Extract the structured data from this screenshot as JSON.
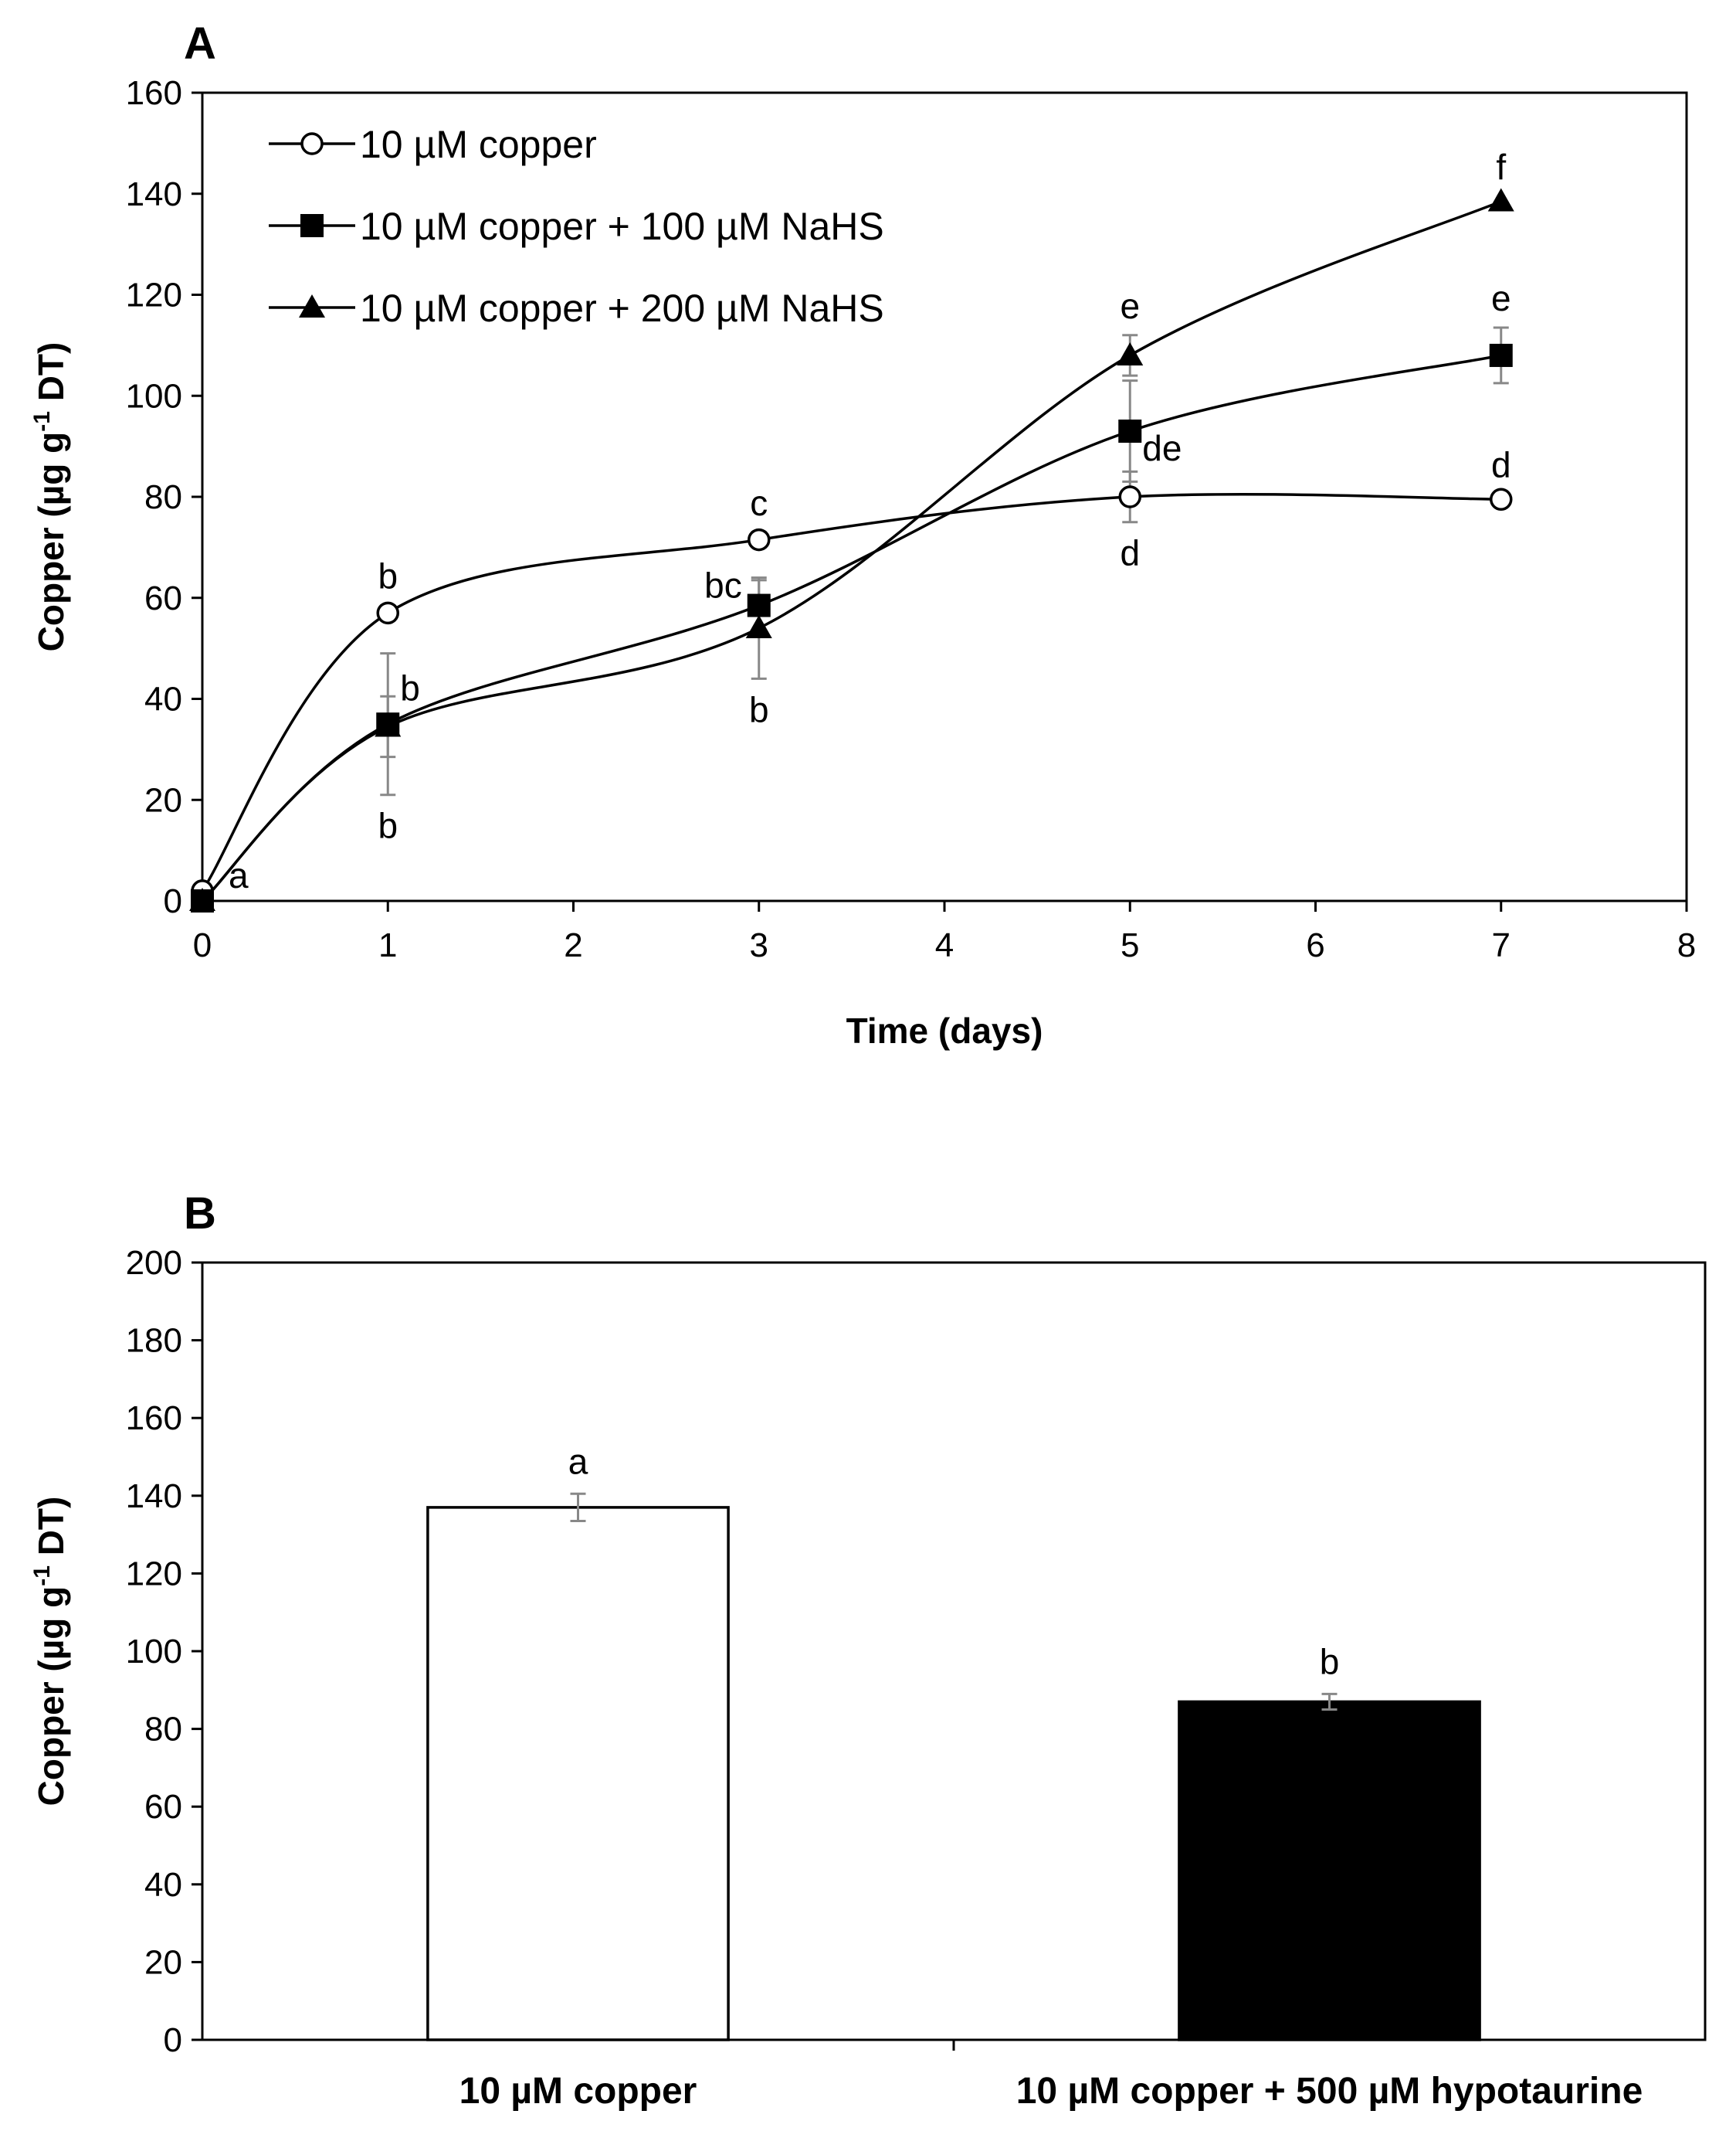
{
  "chart_data": [
    {
      "panel": "A",
      "type": "line",
      "xlabel": "Time (days)",
      "ylabel": "Copper (µg g-1 DT)",
      "xlim": [
        0,
        8
      ],
      "ylim": [
        0,
        160
      ],
      "xticks": [
        0,
        1,
        2,
        3,
        4,
        5,
        6,
        7,
        8
      ],
      "yticks": [
        0,
        20,
        40,
        60,
        80,
        100,
        120,
        140,
        160
      ],
      "legend_position": "top-left",
      "grid": false,
      "series": [
        {
          "name": "10 µM copper",
          "marker": "circle-open",
          "x": [
            0,
            1,
            3,
            5,
            7
          ],
          "y": [
            2,
            57,
            71.5,
            80,
            79.5
          ],
          "err": [
            0.5,
            1.5,
            1.5,
            5,
            1
          ],
          "letters": [
            {
              "x": 0,
              "text": "a",
              "pos": "right-below"
            },
            {
              "x": 1,
              "text": "b",
              "pos": "above"
            },
            {
              "x": 3,
              "text": "c",
              "pos": "above"
            },
            {
              "x": 5,
              "text": "d",
              "pos": "below"
            },
            {
              "x": 7,
              "text": "d",
              "pos": "above"
            }
          ]
        },
        {
          "name": "10 µM copper + 100 µM NaHS",
          "marker": "square",
          "x": [
            0,
            1,
            3,
            5,
            7
          ],
          "y": [
            0,
            35,
            58.5,
            93,
            108
          ],
          "err": [
            0.5,
            14,
            5,
            10,
            5.5
          ],
          "letters": [
            {
              "x": 1,
              "text": "b",
              "pos": "below"
            },
            {
              "x": 3,
              "text": "bc",
              "pos": "left"
            },
            {
              "x": 5,
              "text": "de",
              "pos": "right"
            },
            {
              "x": 7,
              "text": "e",
              "pos": "above"
            }
          ]
        },
        {
          "name": "10 µM copper + 200 µM NaHS",
          "marker": "triangle",
          "x": [
            0,
            1,
            3,
            5,
            7
          ],
          "y": [
            0,
            34.5,
            54,
            108,
            138.5
          ],
          "err": [
            0.5,
            6,
            10,
            4,
            1
          ],
          "letters": [
            {
              "x": 1,
              "text": "b",
              "pos": "right"
            },
            {
              "x": 3,
              "text": "b",
              "pos": "below"
            },
            {
              "x": 5,
              "text": "e",
              "pos": "above"
            },
            {
              "x": 7,
              "text": "f",
              "pos": "above"
            }
          ]
        }
      ]
    },
    {
      "panel": "B",
      "type": "bar",
      "xlabel": "",
      "ylabel": "Copper (µg g-1 DT)",
      "ylim": [
        0,
        200
      ],
      "yticks": [
        0,
        20,
        40,
        60,
        80,
        100,
        120,
        140,
        160,
        180,
        200
      ],
      "grid": false,
      "categories": [
        "10 µM copper",
        "10 µM copper + 500 µM hypotaurine"
      ],
      "values": [
        137,
        87
      ],
      "err": [
        3.5,
        2
      ],
      "fills": [
        "#ffffff",
        "#000000"
      ],
      "letters": [
        "a",
        "b"
      ]
    }
  ]
}
